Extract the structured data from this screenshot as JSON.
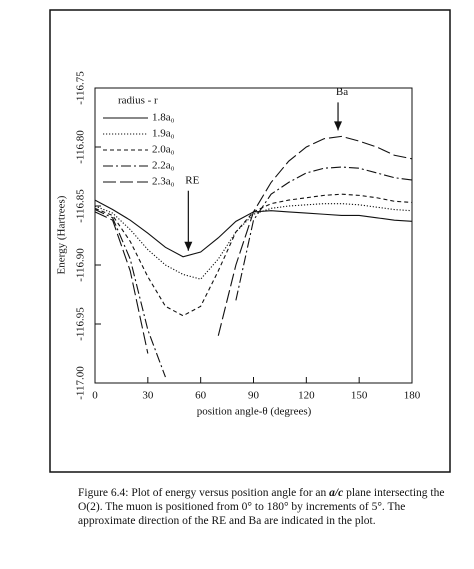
{
  "chart_data": {
    "type": "line",
    "x_label": "position angle-θ (degrees)",
    "y_label": "Energy (Hartrees)",
    "legend_title": "radius - r",
    "legend": "top-left",
    "x": [
      0,
      10,
      20,
      30,
      40,
      50,
      60,
      70,
      80,
      90,
      100,
      110,
      120,
      130,
      140,
      150,
      160,
      170,
      180
    ],
    "xlim": [
      0,
      180
    ],
    "xticks": [
      0,
      30,
      60,
      90,
      120,
      150,
      180
    ],
    "ylim": [
      -117,
      -116.75
    ],
    "yticks": [
      {
        "value": -117,
        "label": "-117.00"
      },
      -116.95,
      {
        "value": -116.9,
        "label": "-116.90"
      },
      -116.85,
      {
        "value": -116.8,
        "label": "-116.80"
      },
      -116.75
    ],
    "series": [
      {
        "name": "1.8a₀",
        "color": "#111111",
        "dash": "solid",
        "values": [
          -116.845,
          -116.853,
          -116.862,
          -116.873,
          -116.885,
          -116.893,
          -116.889,
          -116.877,
          -116.863,
          -116.855,
          -116.854,
          -116.855,
          -116.856,
          -116.857,
          -116.858,
          -116.858,
          -116.86,
          -116.862,
          -116.863
        ]
      },
      {
        "name": "1.9a₀",
        "color": "#111111",
        "dash": "dotted",
        "values": [
          -116.85,
          -116.856,
          -116.87,
          -116.887,
          -116.9,
          -116.908,
          -116.912,
          -116.895,
          -116.872,
          -116.857,
          -116.852,
          -116.85,
          -116.849,
          -116.848,
          -116.848,
          -116.849,
          -116.851,
          -116.853,
          -116.854
        ]
      },
      {
        "name": "2.0a₀",
        "color": "#111111",
        "dash": "dashed",
        "values": [
          -116.852,
          -116.858,
          -116.88,
          -116.91,
          -116.935,
          -116.943,
          -116.935,
          -116.905,
          -116.872,
          -116.855,
          -116.848,
          -116.845,
          -116.843,
          -116.841,
          -116.84,
          -116.841,
          -116.843,
          -116.846,
          -116.847
        ]
      },
      {
        "name": "2.2a₀",
        "color": "#111111",
        "dash": "dashdot",
        "values": [
          -116.853,
          -116.86,
          -116.895,
          -116.955,
          -116.995,
          null,
          null,
          null,
          -116.93,
          -116.862,
          -116.84,
          -116.83,
          -116.822,
          -116.818,
          -116.817,
          -116.818,
          -116.822,
          -116.826,
          -116.828
        ]
      },
      {
        "name": "2.3a₀",
        "color": "#111111",
        "dash": "longdash",
        "values": [
          -116.855,
          -116.862,
          -116.905,
          -116.975,
          null,
          null,
          null,
          -116.96,
          -116.9,
          -116.855,
          -116.83,
          -116.812,
          -116.8,
          -116.793,
          -116.791,
          -116.795,
          -116.8,
          -116.807,
          -116.81
        ]
      }
    ],
    "annotations": [
      {
        "text": "RE",
        "x": 53
      },
      {
        "text": "Ba",
        "x": 138
      }
    ]
  },
  "caption": {
    "before": "Figure 6.4:  Plot of energy versus position angle for an ",
    "emphasis": "a/c",
    "after": " plane intersecting the O(2).  The muon is positioned from 0° to 180° by increments of 5°.  The approximate direction of the RE and Ba are indicated in the plot."
  }
}
